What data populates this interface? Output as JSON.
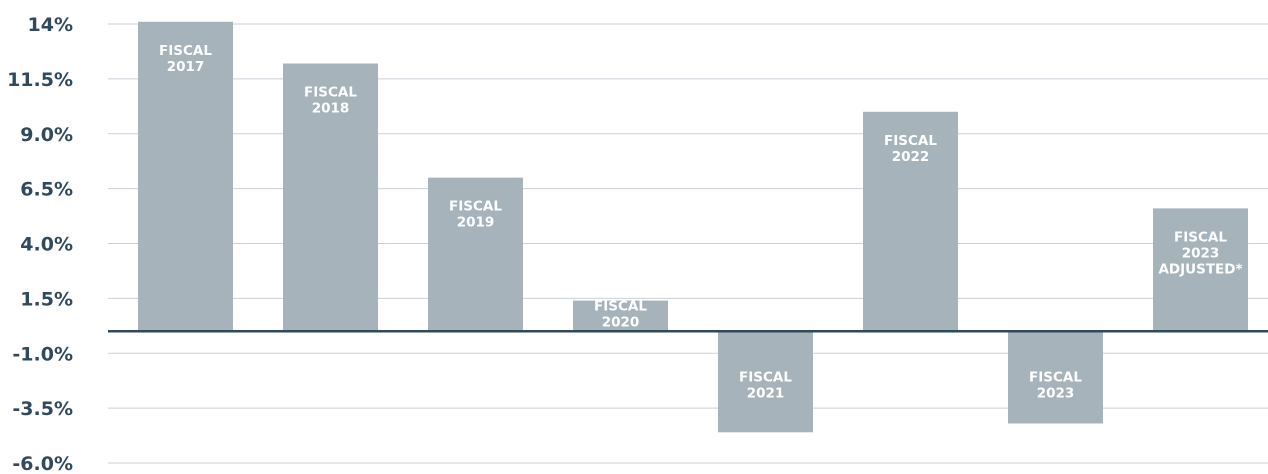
{
  "chart_data": {
    "type": "bar",
    "categories": [
      "FISCAL 2017",
      "FISCAL 2018",
      "FISCAL 2019",
      "FISCAL 2020",
      "FISCAL 2021",
      "FISCAL 2022",
      "FISCAL 2023",
      "FISCAL 2023 ADJUSTED*"
    ],
    "bar_labels": [
      [
        "FISCAL",
        "2017"
      ],
      [
        "FISCAL",
        "2018"
      ],
      [
        "FISCAL",
        "2019"
      ],
      [
        "FISCAL",
        "2020"
      ],
      [
        "FISCAL",
        "2021"
      ],
      [
        "FISCAL",
        "2022"
      ],
      [
        "FISCAL",
        "2023"
      ],
      [
        "FISCAL",
        "2023",
        "ADJUSTED*"
      ]
    ],
    "values": [
      14.1,
      12.2,
      7.0,
      1.4,
      -4.6,
      10.0,
      -4.2,
      5.6
    ],
    "ylim": [
      -6.0,
      14.0
    ],
    "yticks": [
      "14%",
      "11.5%",
      "9.0%",
      "6.5%",
      "4.0%",
      "1.5%",
      "-1.0%",
      "-3.5%",
      "-6.0%"
    ],
    "ytick_values": [
      14.0,
      11.5,
      9.0,
      6.5,
      4.0,
      1.5,
      -1.0,
      -3.5,
      -6.0
    ],
    "grid": true,
    "legend": "none",
    "colors": {
      "bar": "#a6b3bb",
      "axis_text": "#2f4a5c",
      "zero_line": "#2f4a5c",
      "grid": "#c9d1d7",
      "label": "#ffffff"
    }
  }
}
